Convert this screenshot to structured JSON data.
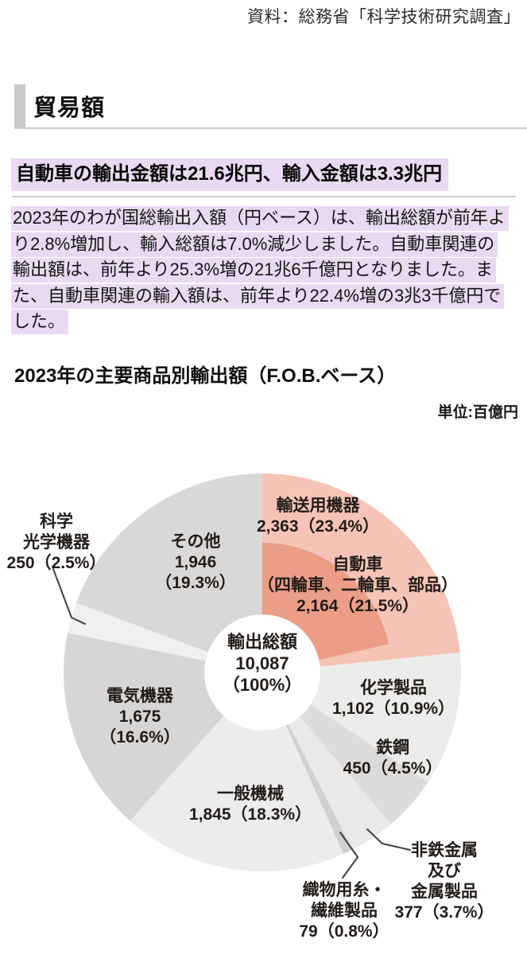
{
  "source": "資料：総務省「科学技術研究調査」",
  "section": {
    "title": "貿易額"
  },
  "headline": "自動車の輸出金額は21.6兆円、輸入金額は3.3兆円",
  "paragraph_lines": [
    "2023年のわが国総輸出入額（円ベース）は、輸出総額が前年よ",
    "り2.8%増加し、輸入総額は7.0%減少しました。自動車関連の",
    "輸出額は、前年より25.3%増の21兆6千億円となりました。ま",
    "た、自動車関連の輸入額は、前年より22.4%増の3兆3千億円で",
    "した。"
  ],
  "chart_data": {
    "type": "pie",
    "title": "2023年の主要商品別輸出額（F.O.B.ベース）",
    "unit_label": "単位:百億円",
    "legend_position": "none",
    "center": {
      "lines": [
        "輸出総額",
        "10,087",
        "（100%）"
      ]
    },
    "total_value": 10087,
    "segments": [
      {
        "name": "輸送用機器",
        "value": 2363,
        "percent": 23.4,
        "color": "#f6c4b7",
        "label_lines": [
          "輸送用機器",
          "2,363（23.4%）"
        ]
      },
      {
        "name": "化学製品",
        "value": 1102,
        "percent": 10.9,
        "color": "#ececeb",
        "label_lines": [
          "化学製品",
          "1,102（10.9%）"
        ]
      },
      {
        "name": "鉄鋼",
        "value": 450,
        "percent": 4.5,
        "color": "#dcdbda",
        "label_lines": [
          "鉄鋼",
          "450（4.5%）"
        ]
      },
      {
        "name": "非鉄金属及び金属製品",
        "value": 377,
        "percent": 3.7,
        "color": "#eae9e8",
        "label_lines": [
          "非鉄金属",
          "及び",
          "金属製品",
          "377（3.7%）"
        ]
      },
      {
        "name": "織物用糸・繊維製品",
        "value": 79,
        "percent": 0.8,
        "color": "#d2d1d0",
        "label_lines": [
          "織物用糸・",
          "繊維製品",
          "79（0.8%）"
        ]
      },
      {
        "name": "一般機械",
        "value": 1845,
        "percent": 18.3,
        "color": "#edecec",
        "label_lines": [
          "一般機械",
          "1,845（18.3%）"
        ]
      },
      {
        "name": "電気機器",
        "value": 1675,
        "percent": 16.6,
        "color": "#d7d6d5",
        "label_lines": [
          "電気機器",
          "1,675",
          "（16.6%）"
        ]
      },
      {
        "name": "科学光学機器",
        "value": 250,
        "percent": 2.5,
        "color": "#f1f0ef",
        "label_lines": [
          "科学",
          "光学機器",
          "250（2.5%）"
        ]
      },
      {
        "name": "その他",
        "value": 1946,
        "percent": 19.3,
        "color": "#d9d8d7",
        "label_lines": [
          "その他",
          "1,946",
          "（19.3%）"
        ]
      }
    ],
    "sub_segment": {
      "name": "自動車（四輪車、二輪車、部品）",
      "parent": "輸送用機器",
      "value": 2164,
      "percent": 21.5,
      "color": "#ec9d86",
      "label_lines": [
        "自動車",
        "（四輪車、二輪車、部品）",
        "2,164（21.5%）"
      ]
    }
  }
}
